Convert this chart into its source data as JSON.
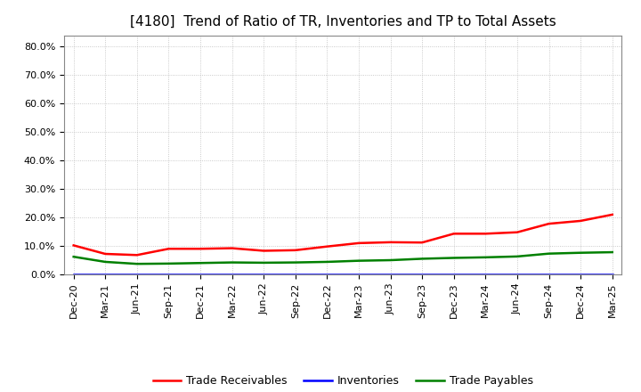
{
  "title": "[4180]  Trend of Ratio of TR, Inventories and TP to Total Assets",
  "x_labels": [
    "Dec-20",
    "Mar-21",
    "Jun-21",
    "Sep-21",
    "Dec-21",
    "Mar-22",
    "Jun-22",
    "Sep-22",
    "Dec-22",
    "Mar-23",
    "Jun-23",
    "Sep-23",
    "Dec-23",
    "Mar-24",
    "Jun-24",
    "Sep-24",
    "Dec-24",
    "Mar-25"
  ],
  "trade_receivables": [
    0.102,
    0.072,
    0.068,
    0.09,
    0.09,
    0.092,
    0.083,
    0.085,
    0.098,
    0.11,
    0.113,
    0.112,
    0.143,
    0.143,
    0.148,
    0.178,
    0.188,
    0.21
  ],
  "inventories": [
    0.001,
    0.001,
    0.001,
    0.001,
    0.001,
    0.001,
    0.001,
    0.001,
    0.001,
    0.001,
    0.001,
    0.001,
    0.001,
    0.001,
    0.001,
    0.001,
    0.001,
    0.001
  ],
  "trade_payables": [
    0.062,
    0.044,
    0.037,
    0.038,
    0.04,
    0.042,
    0.041,
    0.042,
    0.044,
    0.048,
    0.05,
    0.055,
    0.058,
    0.06,
    0.063,
    0.073,
    0.076,
    0.078
  ],
  "tr_color": "#ff0000",
  "inv_color": "#0000ff",
  "tp_color": "#008000",
  "ylim": [
    0.0,
    0.84
  ],
  "yticks": [
    0.0,
    0.1,
    0.2,
    0.3,
    0.4,
    0.5,
    0.6,
    0.7,
    0.8
  ],
  "ytick_labels": [
    "0.0%",
    "10.0%",
    "20.0%",
    "30.0%",
    "40.0%",
    "50.0%",
    "60.0%",
    "70.0%",
    "80.0%"
  ],
  "bg_color": "#ffffff",
  "plot_bg_color": "#ffffff",
  "grid_color": "#bbbbbb",
  "legend_labels": [
    "Trade Receivables",
    "Inventories",
    "Trade Payables"
  ],
  "title_fontsize": 11,
  "tick_fontsize": 8,
  "legend_fontsize": 9
}
